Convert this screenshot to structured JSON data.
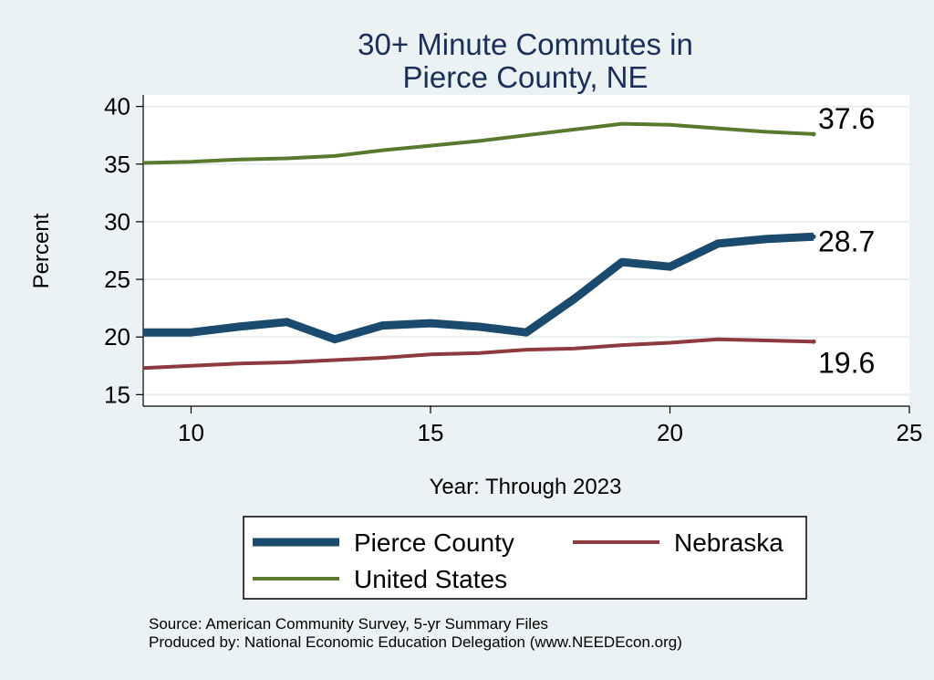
{
  "chart_data": {
    "type": "line",
    "title": [
      "30+ Minute Commutes in",
      "Pierce County, NE"
    ],
    "xlabel": "Year: Through 2023",
    "ylabel": "Percent",
    "xlim": [
      9,
      25
    ],
    "ylim": [
      14,
      41
    ],
    "xticks": [
      10,
      15,
      20,
      25
    ],
    "yticks": [
      15,
      20,
      25,
      30,
      35,
      40
    ],
    "grid": true,
    "x": [
      9,
      10,
      11,
      12,
      13,
      14,
      15,
      16,
      17,
      18,
      19,
      20,
      21,
      22,
      23
    ],
    "series": [
      {
        "name": "Pierce County",
        "color": "#1a4b6e",
        "values": [
          20.4,
          20.4,
          20.9,
          21.3,
          19.8,
          21.0,
          21.2,
          20.9,
          20.4,
          23.3,
          26.5,
          26.1,
          28.1,
          28.5,
          28.7
        ],
        "end_label": "28.7"
      },
      {
        "name": "Nebraska",
        "color": "#8e3a3e",
        "values": [
          17.3,
          17.5,
          17.7,
          17.8,
          18.0,
          18.2,
          18.5,
          18.6,
          18.9,
          19.0,
          19.3,
          19.5,
          19.8,
          19.7,
          19.6
        ],
        "end_label": "19.6"
      },
      {
        "name": "United States",
        "color": "#597a2e",
        "values": [
          35.1,
          35.2,
          35.4,
          35.5,
          35.7,
          36.2,
          36.6,
          37.0,
          37.5,
          38.0,
          38.5,
          38.4,
          38.1,
          37.8,
          37.6
        ],
        "end_label": "37.6"
      }
    ],
    "legend": {
      "position": "bottom",
      "entries": [
        "Pierce County",
        "Nebraska",
        "United States"
      ]
    },
    "notes": [
      "Source: American Community Survey, 5-yr Summary Files",
      "Produced by: National Economic Education Delegation (www.NEEDEcon.org)"
    ]
  }
}
